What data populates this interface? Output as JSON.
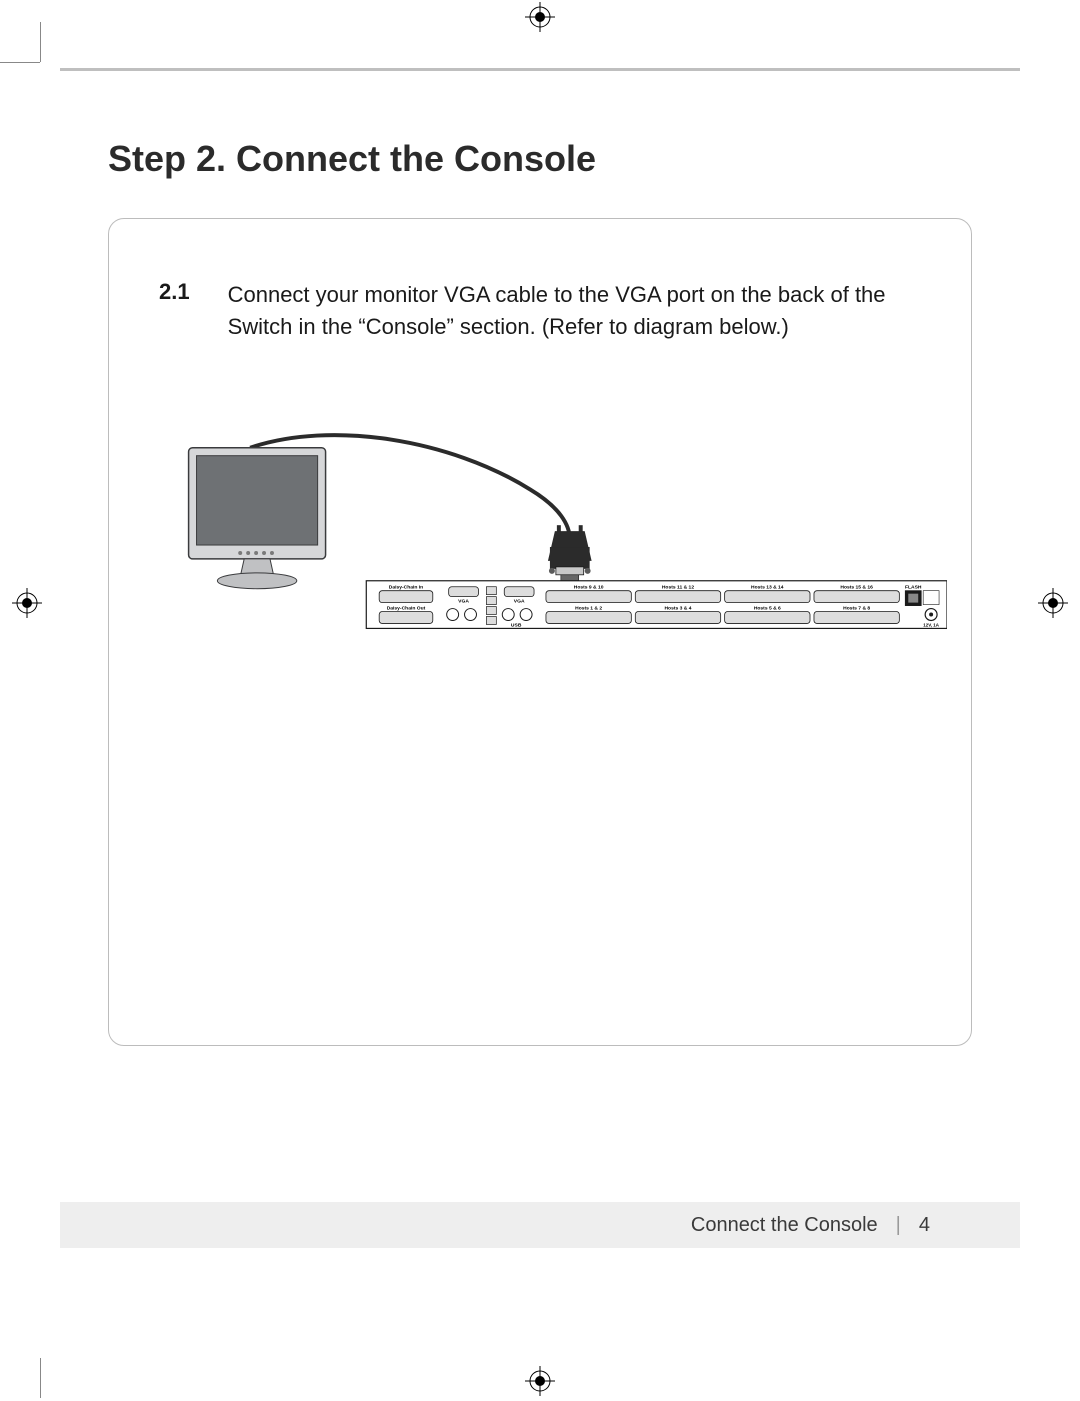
{
  "title": "Step 2. Connect the Console",
  "step": {
    "number": "2.1",
    "text": "Connect your monitor VGA cable to the VGA port on the back of the Switch in the “Console” section. (Refer to diagram below.)"
  },
  "diagram": {
    "monitor": {
      "fill": "#d6d7d9",
      "screen_fill": "#6e7174",
      "stand_fill": "#c0c1c3",
      "outline": "#3a3b3d"
    },
    "vga_connector": {
      "body": "#2b2b2b",
      "shell": "#5b5b5b",
      "plate": "#c8c8c8"
    },
    "cable_color": "#2b2b2b",
    "switch_panel": {
      "bg": "#ffffff",
      "outline": "#1a1a1a",
      "port_fill": "#dddddd",
      "port_stroke": "#1a1a1a",
      "labels": {
        "daisy_in": "Daisy-Chain In",
        "daisy_out": "Daisy-Chain Out",
        "vga1": "VGA",
        "vga2": "VGA",
        "usb": "USB",
        "flash": "FLASH",
        "power": "12V, 1A",
        "host_top": [
          "Hosts 9 & 10",
          "Hosts 11 & 12",
          "Hosts 13 & 14",
          "Hosts 15 & 16"
        ],
        "host_bot": [
          "Hosts 1 & 2",
          "Hosts 3 & 4",
          "Hosts 5 & 6",
          "Hosts 7 & 8"
        ]
      }
    }
  },
  "footer": {
    "section": "Connect the Console",
    "page": "4"
  },
  "colors": {
    "title": "#2b2b2b",
    "body": "#1a1a1a",
    "panel_border": "#bcbcbc",
    "footer_bg": "#eeeeee",
    "hr": "#bfbfbf"
  }
}
